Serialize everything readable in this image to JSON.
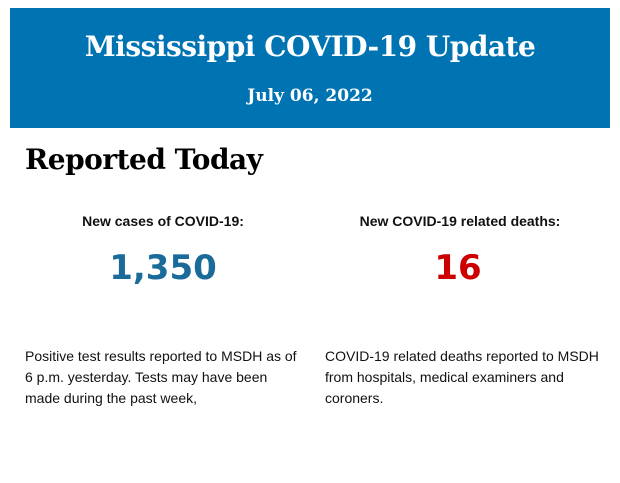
{
  "header": {
    "title": "Mississippi COVID-19 Update",
    "date": "July 06, 2022",
    "background_color": "#0074b3"
  },
  "section": {
    "heading": "Reported Today"
  },
  "cases": {
    "label": "New cases of COVID-19:",
    "value": "1,350",
    "color": "#1a6a9a",
    "description": "Positive test results reported to MSDH as of 6 p.m. yesterday. Tests may have been made during the past week,"
  },
  "deaths": {
    "label": "New COVID-19 related deaths:",
    "value": "16",
    "color": "#cc0000",
    "description": "COVID-19 related deaths reported to MSDH from hospitals, medical examiners and coroners."
  }
}
